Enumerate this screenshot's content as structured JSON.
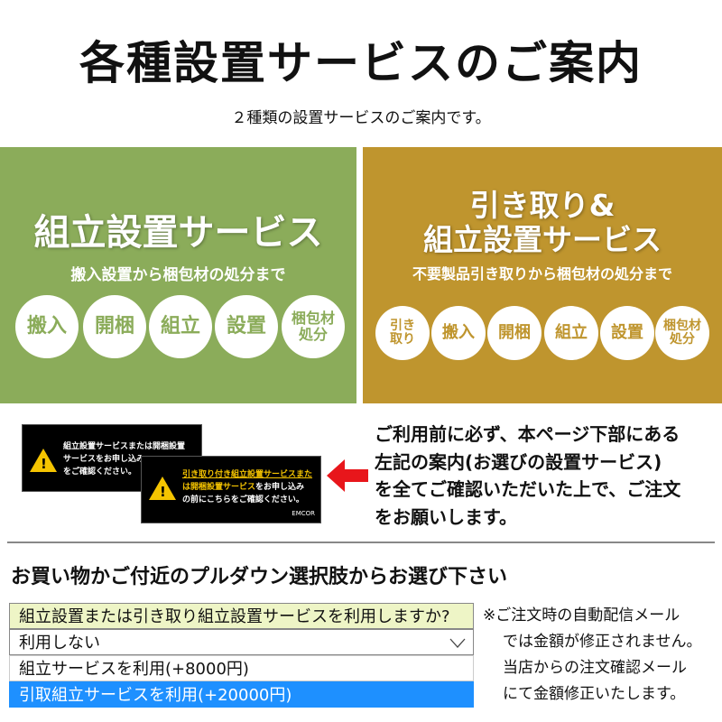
{
  "title": "各種設置サービスのご案内",
  "subtitle": "２種類の設置サービスのご案内です。",
  "colors": {
    "green": "#8bac5a",
    "gold": "#bf952e",
    "selected": "#1e90ff",
    "arrow": "#e8161b"
  },
  "left_panel": {
    "title": "組立設置サービス",
    "desc": "搬入設置から梱包材の処分まで",
    "steps": [
      "搬入",
      "開梱",
      "組立",
      "設置",
      "梱包材処分"
    ]
  },
  "right_panel": {
    "title_line1": "引き取り&",
    "title_line2": "組立設置サービス",
    "desc": "不要製品引き取りから梱包材の処分まで",
    "steps": [
      "引き取り",
      "搬入",
      "開梱",
      "組立",
      "設置",
      "梱包材処分"
    ]
  },
  "card1": {
    "line1": "組立設置サービスまたは開梱設置",
    "line2": "サービスをお申し込み",
    "line3": "をご確認ください。"
  },
  "card2": {
    "line1": "引き取り付き組立設置サービスまた",
    "line2a": "は開梱設置サービス",
    "line2b": "をお申し込み",
    "line3": "の前にこちらをご確認ください。",
    "logo": "EMCOR"
  },
  "notice": [
    "ご利用前に必ず、本ページ下部にある",
    "左記の案内(お選びの設置サービス)",
    "を全てご確認いただいた上で、ご注文",
    "をお願いします。"
  ],
  "heading": "お買い物かご付近のプルダウン選択肢からお選び下さい",
  "select": {
    "label": "組立設置または引き取り組立設置サービスを利用しますか?",
    "value": "利用しない",
    "options": [
      "組立サービスを利用(+8000円)",
      "引取組立サービスを利用(+20000円)"
    ],
    "highlighted_index": 1
  },
  "note": [
    "※ご注文時の自動配信メール",
    "では金額が修正されません。",
    "当店からの注文確認メール",
    "にて金額修正いたします。"
  ]
}
